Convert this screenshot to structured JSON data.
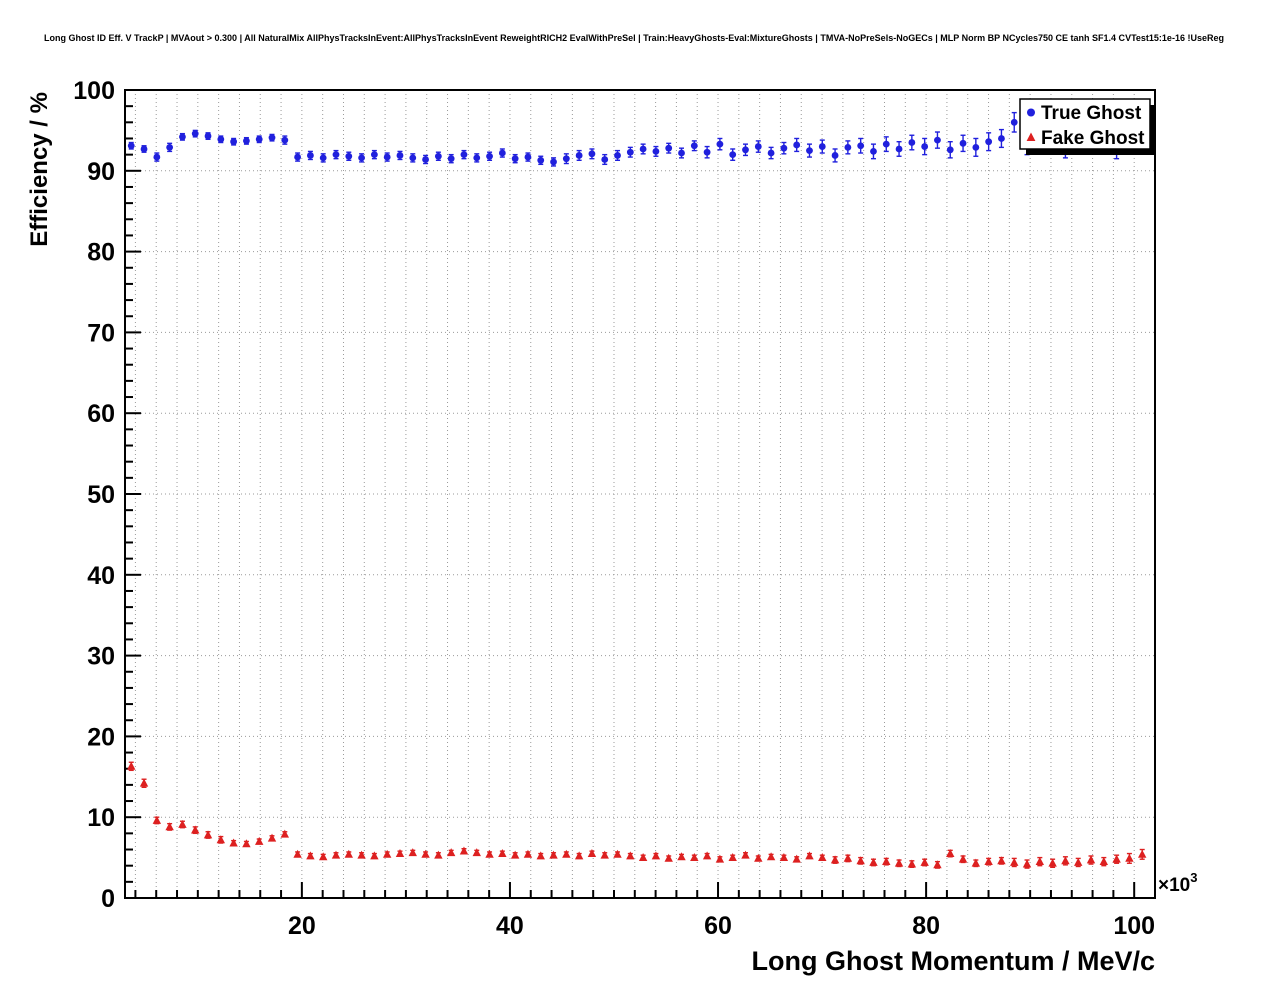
{
  "title": "Long Ghost ID Eff. V TrackP | MVAout > 0.300 | All NaturalMix AllPhysTracksInEvent:AllPhysTracksInEvent ReweightRICH2 EvalWithPreSel | Train:HeavyGhosts-Eval:MixtureGhosts | TMVA-NoPreSels-NoGECs | MLP Norm BP NCycles750 CE tanh SF1.4 CVTest15:1e-16 !UseReg",
  "axes": {
    "y_label": "Efficiency / %",
    "x_label": "Long Ghost Momentum / MeV/c",
    "x_exponent_base": "×10",
    "x_exponent_power": "3"
  },
  "legend": {
    "position": "top-right",
    "items": [
      {
        "label": "True Ghost",
        "marker": "circle"
      },
      {
        "label": "Fake Ghost",
        "marker": "triangle"
      }
    ]
  },
  "chart_data": {
    "type": "scatter",
    "title": "Long Ghost ID Eff. V TrackP | MVAout > 0.300",
    "xlabel": "Long Ghost Momentum / MeV/c",
    "ylabel": "Efficiency / %",
    "x_units_exponent": "×10³",
    "xlim": [
      3,
      102
    ],
    "ylim": [
      0,
      100
    ],
    "x_ticks": [
      20,
      40,
      60,
      80,
      100
    ],
    "y_ticks": [
      0,
      10,
      20,
      30,
      40,
      50,
      60,
      70,
      80,
      90,
      100
    ],
    "x_minor_step": 2,
    "y_minor_step": 2,
    "grid": true,
    "legend_position": "top-right",
    "x": [
      3.6,
      4.83,
      6.06,
      7.29,
      8.52,
      9.75,
      10.98,
      12.21,
      13.44,
      14.67,
      15.9,
      17.13,
      18.36,
      19.59,
      20.82,
      22.05,
      23.28,
      24.51,
      25.74,
      26.97,
      28.2,
      29.43,
      30.66,
      31.89,
      33.12,
      34.35,
      35.58,
      36.81,
      38.04,
      39.27,
      40.5,
      41.73,
      42.96,
      44.19,
      45.42,
      46.65,
      47.88,
      49.11,
      50.34,
      51.57,
      52.8,
      54.03,
      55.26,
      56.49,
      57.72,
      58.95,
      60.18,
      61.41,
      62.64,
      63.87,
      65.1,
      66.33,
      67.56,
      68.79,
      70.02,
      71.25,
      72.48,
      73.71,
      74.94,
      76.17,
      77.4,
      78.63,
      79.86,
      81.09,
      82.32,
      83.55,
      84.78,
      86.01,
      87.24,
      88.47,
      89.7,
      90.93,
      92.16,
      93.39,
      94.62,
      95.85,
      97.08,
      98.31,
      99.54,
      100.77
    ],
    "series": [
      {
        "name": "True Ghost",
        "marker": "circle",
        "color": "#2020dd",
        "values": [
          93.1,
          92.7,
          91.7,
          92.9,
          94.2,
          94.6,
          94.3,
          93.9,
          93.6,
          93.7,
          93.9,
          94.1,
          93.8,
          91.7,
          91.9,
          91.6,
          92.0,
          91.8,
          91.6,
          92.0,
          91.7,
          91.9,
          91.6,
          91.4,
          91.8,
          91.5,
          92.0,
          91.6,
          91.8,
          92.2,
          91.5,
          91.7,
          91.3,
          91.1,
          91.5,
          91.9,
          92.1,
          91.4,
          91.9,
          92.3,
          92.7,
          92.4,
          92.8,
          92.2,
          93.1,
          92.3,
          93.3,
          92.0,
          92.6,
          93.0,
          92.2,
          92.8,
          93.2,
          92.5,
          93.0,
          91.9,
          92.9,
          93.1,
          92.4,
          93.3,
          92.7,
          93.5,
          93.0,
          93.8,
          92.6,
          93.4,
          92.9,
          93.6,
          94.0,
          96.0,
          93.2,
          94.3,
          93.4,
          92.9,
          94.1,
          93.5,
          94.4,
          93.0,
          93.7,
          94.2
        ],
        "errors": [
          0.4,
          0.4,
          0.5,
          0.5,
          0.4,
          0.4,
          0.4,
          0.4,
          0.4,
          0.4,
          0.4,
          0.4,
          0.5,
          0.5,
          0.5,
          0.5,
          0.5,
          0.5,
          0.5,
          0.5,
          0.5,
          0.5,
          0.5,
          0.5,
          0.5,
          0.5,
          0.5,
          0.5,
          0.5,
          0.5,
          0.5,
          0.5,
          0.5,
          0.5,
          0.6,
          0.6,
          0.6,
          0.6,
          0.6,
          0.6,
          0.6,
          0.6,
          0.6,
          0.6,
          0.6,
          0.7,
          0.7,
          0.7,
          0.7,
          0.7,
          0.7,
          0.7,
          0.8,
          0.8,
          0.8,
          0.8,
          0.8,
          0.9,
          0.9,
          0.9,
          0.9,
          0.9,
          1.0,
          1.0,
          1.0,
          1.0,
          1.1,
          1.1,
          1.1,
          1.2,
          1.2,
          1.2,
          1.3,
          1.3,
          1.3,
          1.4,
          1.4,
          1.5,
          1.5,
          1.6
        ]
      },
      {
        "name": "Fake Ghost",
        "marker": "triangle",
        "color": "#dd2020",
        "values": [
          16.3,
          14.2,
          9.6,
          8.8,
          9.1,
          8.4,
          7.8,
          7.2,
          6.8,
          6.7,
          7.0,
          7.4,
          7.9,
          5.4,
          5.2,
          5.1,
          5.3,
          5.4,
          5.3,
          5.2,
          5.4,
          5.5,
          5.6,
          5.4,
          5.3,
          5.6,
          5.8,
          5.6,
          5.4,
          5.5,
          5.3,
          5.4,
          5.2,
          5.3,
          5.4,
          5.2,
          5.5,
          5.3,
          5.4,
          5.2,
          5.0,
          5.2,
          4.9,
          5.1,
          5.0,
          5.2,
          4.8,
          5.0,
          5.3,
          4.9,
          5.1,
          5.0,
          4.8,
          5.2,
          5.0,
          4.7,
          4.9,
          4.6,
          4.4,
          4.5,
          4.3,
          4.2,
          4.4,
          4.1,
          5.5,
          4.8,
          4.3,
          4.5,
          4.6,
          4.4,
          4.2,
          4.5,
          4.3,
          4.6,
          4.4,
          4.7,
          4.5,
          4.8,
          4.9,
          5.4
        ],
        "errors": [
          0.5,
          0.5,
          0.4,
          0.4,
          0.4,
          0.4,
          0.4,
          0.4,
          0.3,
          0.3,
          0.3,
          0.3,
          0.3,
          0.3,
          0.3,
          0.3,
          0.3,
          0.3,
          0.3,
          0.3,
          0.3,
          0.3,
          0.3,
          0.3,
          0.3,
          0.3,
          0.3,
          0.3,
          0.3,
          0.3,
          0.3,
          0.3,
          0.3,
          0.3,
          0.3,
          0.3,
          0.3,
          0.3,
          0.3,
          0.3,
          0.3,
          0.3,
          0.3,
          0.3,
          0.3,
          0.3,
          0.3,
          0.3,
          0.3,
          0.3,
          0.3,
          0.3,
          0.3,
          0.3,
          0.3,
          0.4,
          0.4,
          0.4,
          0.4,
          0.4,
          0.4,
          0.4,
          0.4,
          0.4,
          0.4,
          0.4,
          0.4,
          0.4,
          0.4,
          0.5,
          0.5,
          0.5,
          0.5,
          0.5,
          0.5,
          0.5,
          0.5,
          0.5,
          0.6,
          0.6
        ]
      }
    ]
  }
}
